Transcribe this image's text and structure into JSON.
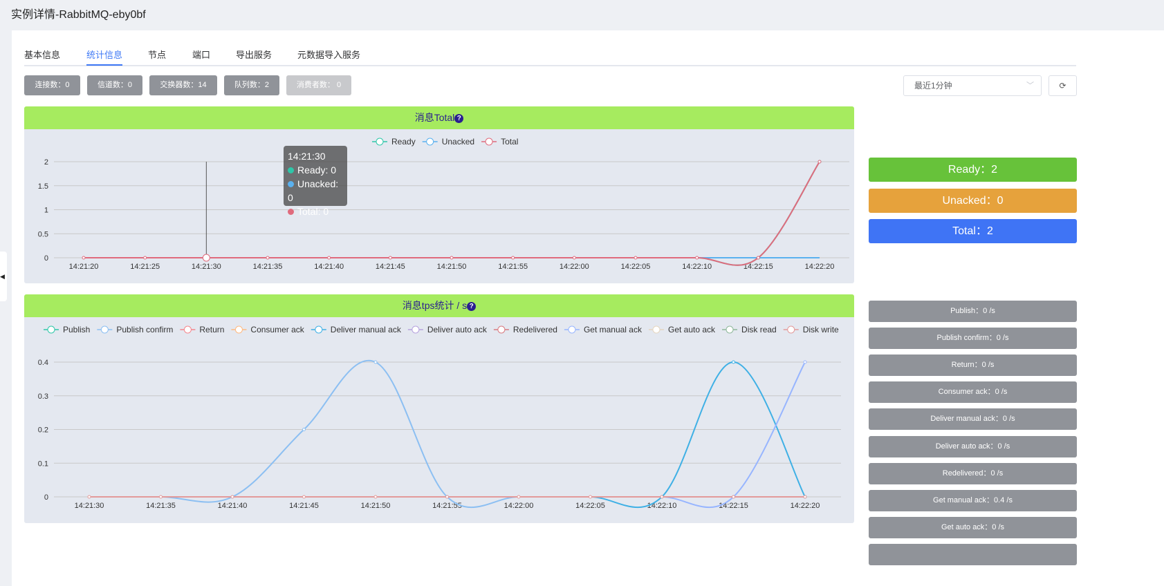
{
  "title": "实例详情-RabbitMQ-eby0bf",
  "tabs": [
    {
      "label": "基本信息"
    },
    {
      "label": "统计信息",
      "active": true
    },
    {
      "label": "节点"
    },
    {
      "label": "端口"
    },
    {
      "label": "导出服务"
    },
    {
      "label": "元数据导入服务"
    }
  ],
  "stats": [
    {
      "label": "连接数：0"
    },
    {
      "label": "信道数：0"
    },
    {
      "label": "交换器数：14"
    },
    {
      "label": "队列数：2"
    },
    {
      "label": "消费者数： 0",
      "disabled": true
    }
  ],
  "time_range": {
    "value": "最近1分钟",
    "icon": "chevron-down-icon"
  },
  "refresh": {
    "icon": "refresh-icon"
  },
  "summary": {
    "ready": "Ready：2",
    "unacked": "Unacked：0",
    "total": "Total：2",
    "colors": {
      "ready": "#67c23a",
      "unacked": "#e6a23c",
      "total": "#3f74f5"
    }
  },
  "rates": [
    "Publish：0 /s",
    "Publish confirm：0 /s",
    "Return：0 /s",
    "Consumer ack：0 /s",
    "Deliver manual ack：0 /s",
    "Deliver auto ack：0 /s",
    "Redelivered：0 /s",
    "Get manual ack：0.4 /s",
    "Get auto ack：0 /s",
    ""
  ],
  "tooltip": {
    "time": "14:21:30",
    "rows": [
      {
        "text": "Ready: 0",
        "color": "#2ec7a9"
      },
      {
        "text": "Unacked: 0",
        "color": "#5ab1ef"
      },
      {
        "text": "Total: 0",
        "color": "#e06b7d"
      }
    ]
  },
  "chart_data": [
    {
      "type": "line",
      "title": "消息Total",
      "title_icon": "help-icon",
      "legend_position": "top",
      "grid": true,
      "x": [
        "14:21:20",
        "14:21:25",
        "14:21:30",
        "14:21:35",
        "14:21:40",
        "14:21:45",
        "14:21:50",
        "14:21:55",
        "14:22:00",
        "14:22:05",
        "14:22:10",
        "14:22:15",
        "14:22:20"
      ],
      "yticks": [
        "0",
        "0.5",
        "1",
        "1.5",
        "2"
      ],
      "ylim": [
        0,
        2
      ],
      "series": [
        {
          "name": "Ready",
          "color": "#2ec7a9",
          "values": [
            0,
            0,
            0,
            0,
            0,
            0,
            0,
            0,
            0,
            0,
            0,
            0,
            2
          ]
        },
        {
          "name": "Unacked",
          "color": "#5ab1ef",
          "values": [
            0,
            0,
            0,
            0,
            0,
            0,
            0,
            0,
            0,
            0,
            0,
            0,
            0
          ]
        },
        {
          "name": "Total",
          "color": "#e06b7d",
          "values": [
            0,
            0,
            0,
            0,
            0,
            0,
            0,
            0,
            0,
            0,
            0,
            0,
            2
          ]
        }
      ]
    },
    {
      "type": "line",
      "title": "消息tps统计 / s",
      "title_icon": "help-icon",
      "legend_position": "top",
      "grid": true,
      "x": [
        "14:21:30",
        "14:21:35",
        "14:21:40",
        "14:21:45",
        "14:21:50",
        "14:21:55",
        "14:22:00",
        "14:22:05",
        "14:22:10",
        "14:22:15",
        "14:22:20"
      ],
      "yticks": [
        "0",
        "0.1",
        "0.2",
        "0.3",
        "0.4"
      ],
      "ylim": [
        0,
        0.4
      ],
      "series": [
        {
          "name": "Publish",
          "color": "#2ec7a9",
          "values": [
            0,
            0,
            0,
            0,
            0,
            0,
            0,
            0,
            0,
            0,
            0
          ]
        },
        {
          "name": "Publish confirm",
          "color": "#8cbff2",
          "values": [
            0,
            0,
            0,
            0.2,
            0.4,
            0,
            0,
            0,
            0,
            0,
            0
          ]
        },
        {
          "name": "Return",
          "color": "#f5868d",
          "values": [
            0,
            0,
            0,
            0,
            0,
            0,
            0,
            0,
            0,
            0,
            0
          ]
        },
        {
          "name": "Consumer ack",
          "color": "#ffb980",
          "values": [
            0,
            0,
            0,
            0,
            0,
            0,
            0,
            0,
            0,
            0,
            0
          ]
        },
        {
          "name": "Deliver manual ack",
          "color": "#3fb0e5",
          "values": [
            0,
            0,
            0,
            0,
            0,
            0,
            0,
            0,
            0,
            0.4,
            0
          ]
        },
        {
          "name": "Deliver auto ack",
          "color": "#b6a2de",
          "values": [
            0,
            0,
            0,
            0,
            0,
            0,
            0,
            0,
            0,
            0,
            0
          ]
        },
        {
          "name": "Redelivered",
          "color": "#d87a80",
          "values": [
            0,
            0,
            0,
            0,
            0,
            0,
            0,
            0,
            0,
            0,
            0
          ]
        },
        {
          "name": "Get manual ack",
          "color": "#97b5ff",
          "values": [
            0,
            0,
            0,
            0,
            0,
            0,
            0,
            0,
            0,
            0,
            0.4
          ]
        },
        {
          "name": "Get auto ack",
          "color": "#e5d6c0",
          "values": [
            0,
            0,
            0,
            0,
            0,
            0,
            0,
            0,
            0,
            0,
            0
          ]
        },
        {
          "name": "Disk read",
          "color": "#8fb89b",
          "values": [
            0,
            0,
            0,
            0,
            0,
            0,
            0,
            0,
            0,
            0,
            0
          ]
        },
        {
          "name": "Disk write",
          "color": "#e39a9a",
          "values": [
            0,
            0,
            0,
            0,
            0,
            0,
            0,
            0,
            0,
            0,
            0
          ]
        }
      ]
    }
  ]
}
